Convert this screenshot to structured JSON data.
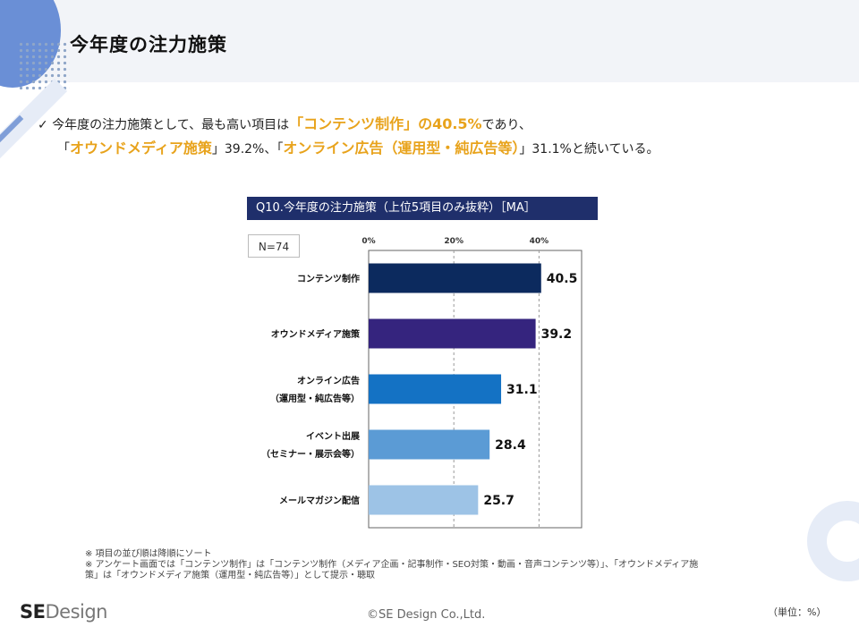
{
  "title": "今年度の注力施策",
  "summary": {
    "check": "✓",
    "l1a": "今年度の注力施策として、最も高い項目は",
    "l1h": "「コンテンツ制作」の40.5%",
    "l1b": "であり、",
    "l2a": "「",
    "l2h1": "オウンドメディア施策",
    "l2b": "」39.2%、「",
    "l2h2": "オンライン広告（運用型・純広告等）",
    "l2c": "」31.1%と続いている。"
  },
  "question_title": "Q10.今年度の注力施策（上位5項目のみ抜粋）［MA］",
  "sample_size": "N=74",
  "chart_data": {
    "type": "bar",
    "orientation": "horizontal",
    "categories": [
      [
        "コンテンツ制作"
      ],
      [
        "オウンドメディア施策"
      ],
      [
        "オンライン広告",
        "（運用型・純広告等）"
      ],
      [
        "イベント出展",
        "（セミナー・展示会等）"
      ],
      [
        "メールマガジン配信"
      ]
    ],
    "values": [
      40.5,
      39.2,
      31.1,
      28.4,
      25.7
    ],
    "value_labels": [
      "40.5",
      "39.2",
      "31.1",
      "28.4",
      "25.7"
    ],
    "colors": [
      "#0c2a5e",
      "#35247e",
      "#1472c4",
      "#5b9bd5",
      "#9dc3e6"
    ],
    "x_ticks": [
      0,
      20,
      40
    ],
    "x_tick_labels": [
      "0%",
      "20%",
      "40%"
    ],
    "xlim": [
      0,
      50
    ],
    "gridlines": "dashed"
  },
  "footnotes": [
    "※ 項目の並び順は降順にソート",
    "※ アンケート画面では「コンテンツ制作」は「コンテンツ制作（メディア企画・記事制作・SEO対策・動画・音声コンテンツ等）」、「オウンドメディア施",
    "策」は「オウンドメディア施策（運用型・純広告等）」として提示・聴取"
  ],
  "brand": {
    "se": "SE",
    "design": "Design"
  },
  "copyright": "©SE Design Co.,Ltd.",
  "unit": "（単位：%）"
}
